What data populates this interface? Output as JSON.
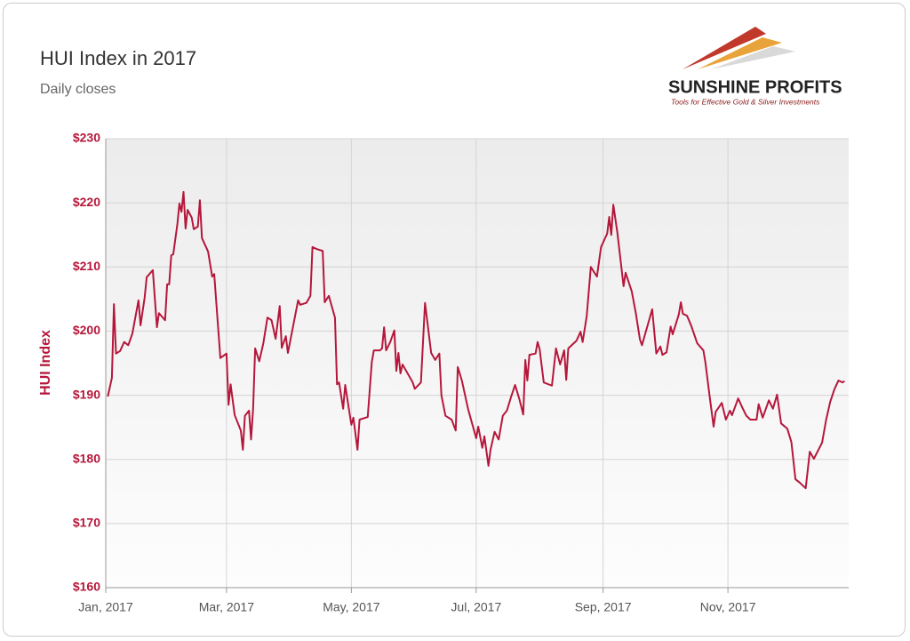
{
  "chart_data": {
    "type": "line",
    "title": "HUI Index in 2017",
    "subtitle": "Daily closes",
    "y_label": "HUI Index",
    "x": [
      1,
      3,
      4,
      5,
      7,
      9,
      11,
      13,
      16,
      17,
      19,
      20,
      23,
      25,
      26,
      29,
      30,
      31,
      32,
      33,
      35,
      36,
      37,
      38,
      39,
      40,
      42,
      43,
      45,
      46,
      47,
      50,
      52,
      53,
      54,
      56,
      59,
      60,
      61,
      63,
      66,
      67,
      68,
      70,
      71,
      72,
      73,
      75,
      77,
      79,
      81,
      83,
      85,
      86,
      88,
      89,
      94,
      95,
      98,
      100,
      101,
      103,
      106,
      107,
      109,
      112,
      113,
      114,
      116,
      117,
      120,
      121,
      123,
      124,
      128,
      130,
      131,
      134,
      135,
      136,
      137,
      139,
      141,
      142,
      143,
      144,
      145,
      150,
      151,
      154,
      156,
      159,
      161,
      163,
      164,
      166,
      169,
      171,
      172,
      174,
      177,
      179,
      181,
      182,
      184,
      185,
      187,
      188,
      190,
      192,
      194,
      196,
      198,
      200,
      202,
      204,
      205,
      206,
      207,
      210,
      211,
      212,
      214,
      218,
      220,
      222,
      224,
      225,
      226,
      230,
      232,
      233,
      235,
      237,
      240,
      242,
      245,
      246,
      247,
      248,
      250,
      252,
      253,
      254,
      257,
      259,
      261,
      262,
      267,
      269,
      271,
      272,
      274,
      276,
      277,
      280,
      281,
      282,
      284,
      286,
      289,
      292,
      293,
      295,
      297,
      298,
      301,
      303,
      305,
      306,
      309,
      311,
      313,
      315,
      318,
      319,
      321,
      324,
      326,
      328,
      330,
      333,
      335,
      337,
      339,
      342,
      344,
      346,
      350,
      352,
      354,
      356,
      358,
      360,
      361
    ],
    "series": [
      {
        "name": "HUI Index",
        "color": "#b5173b",
        "values": [
          189.8,
          192.7,
          204.2,
          196.5,
          196.9,
          198.3,
          197.8,
          199.6,
          204.8,
          200.9,
          205.2,
          208.4,
          209.5,
          200.6,
          202.8,
          201.7,
          207.3,
          207.3,
          211.8,
          212,
          216.7,
          219.9,
          218.6,
          221.7,
          216,
          218.9,
          217.7,
          215.9,
          216.3,
          220.4,
          214.5,
          212.4,
          208.5,
          208.9,
          204.5,
          195.8,
          196.5,
          188.5,
          191.7,
          186.9,
          184.5,
          181.5,
          186.8,
          187.6,
          183.1,
          187.9,
          197.3,
          195.3,
          198.1,
          202.1,
          201.7,
          198.8,
          203.9,
          197.4,
          199.2,
          196.6,
          204.8,
          204.1,
          204.4,
          205.5,
          213.1,
          212.8,
          212.5,
          204.5,
          205.5,
          202.1,
          191.7,
          192,
          187.9,
          191.6,
          185.4,
          186.5,
          181.5,
          186.2,
          186.6,
          195.2,
          197,
          197,
          197.3,
          200.6,
          197,
          198.3,
          200.1,
          193.8,
          196.6,
          193.4,
          194.8,
          192,
          191,
          192,
          204.4,
          196.6,
          195.5,
          196.5,
          190,
          186.8,
          186.2,
          184.5,
          194.4,
          192.3,
          187.9,
          185.6,
          183.3,
          185.1,
          181.8,
          183.6,
          179,
          181.5,
          184.3,
          183.1,
          186.8,
          187.6,
          189.7,
          191.6,
          189.5,
          187,
          195.5,
          192.3,
          196.3,
          196.5,
          198.3,
          197.2,
          192,
          191.5,
          197.3,
          194.8,
          197,
          192.4,
          197.3,
          198.5,
          199.9,
          198.3,
          202.3,
          210,
          208.5,
          213.1,
          215.2,
          217.8,
          215,
          219.7,
          215.3,
          209.8,
          207,
          209.1,
          206.2,
          202.8,
          198.7,
          197.8,
          203.4,
          196.5,
          197.6,
          196.3,
          196.7,
          200.7,
          199.5,
          202.6,
          204.5,
          202.7,
          202.4,
          200.9,
          198.1,
          197,
          195.1,
          190,
          185.1,
          187.4,
          188.8,
          186.2,
          187.6,
          186.9,
          189.5,
          188.1,
          186.8,
          186.2,
          186.2,
          188.6,
          186.5,
          189.2,
          187.9,
          190.1,
          185.6,
          184.8,
          182.7,
          176.9,
          176.4,
          175.5,
          181.2,
          180.1,
          182.6,
          186.2,
          189,
          190.9,
          192.3,
          192,
          192.2
        ]
      }
    ],
    "xlim": [
      0,
      363
    ],
    "xticks": [
      {
        "value": 0,
        "label": "Jan, 2017"
      },
      {
        "value": 59,
        "label": "Mar, 2017"
      },
      {
        "value": 120,
        "label": "May, 2017"
      },
      {
        "value": 181,
        "label": "Jul, 2017"
      },
      {
        "value": 243,
        "label": "Sep, 2017"
      },
      {
        "value": 304,
        "label": "Nov, 2017"
      }
    ],
    "ylim": [
      160,
      230
    ],
    "yticks": [
      {
        "value": 160,
        "label": "$160"
      },
      {
        "value": 170,
        "label": "$170"
      },
      {
        "value": 180,
        "label": "$180"
      },
      {
        "value": 190,
        "label": "$190"
      },
      {
        "value": 200,
        "label": "$200"
      },
      {
        "value": 210,
        "label": "$210"
      },
      {
        "value": 220,
        "label": "$220"
      },
      {
        "value": 230,
        "label": "$230"
      }
    ],
    "grid": true
  },
  "logo": {
    "brand": "SUNSHINE PROFITS",
    "tagline": "Tools for Effective Gold & Silver Investments"
  }
}
